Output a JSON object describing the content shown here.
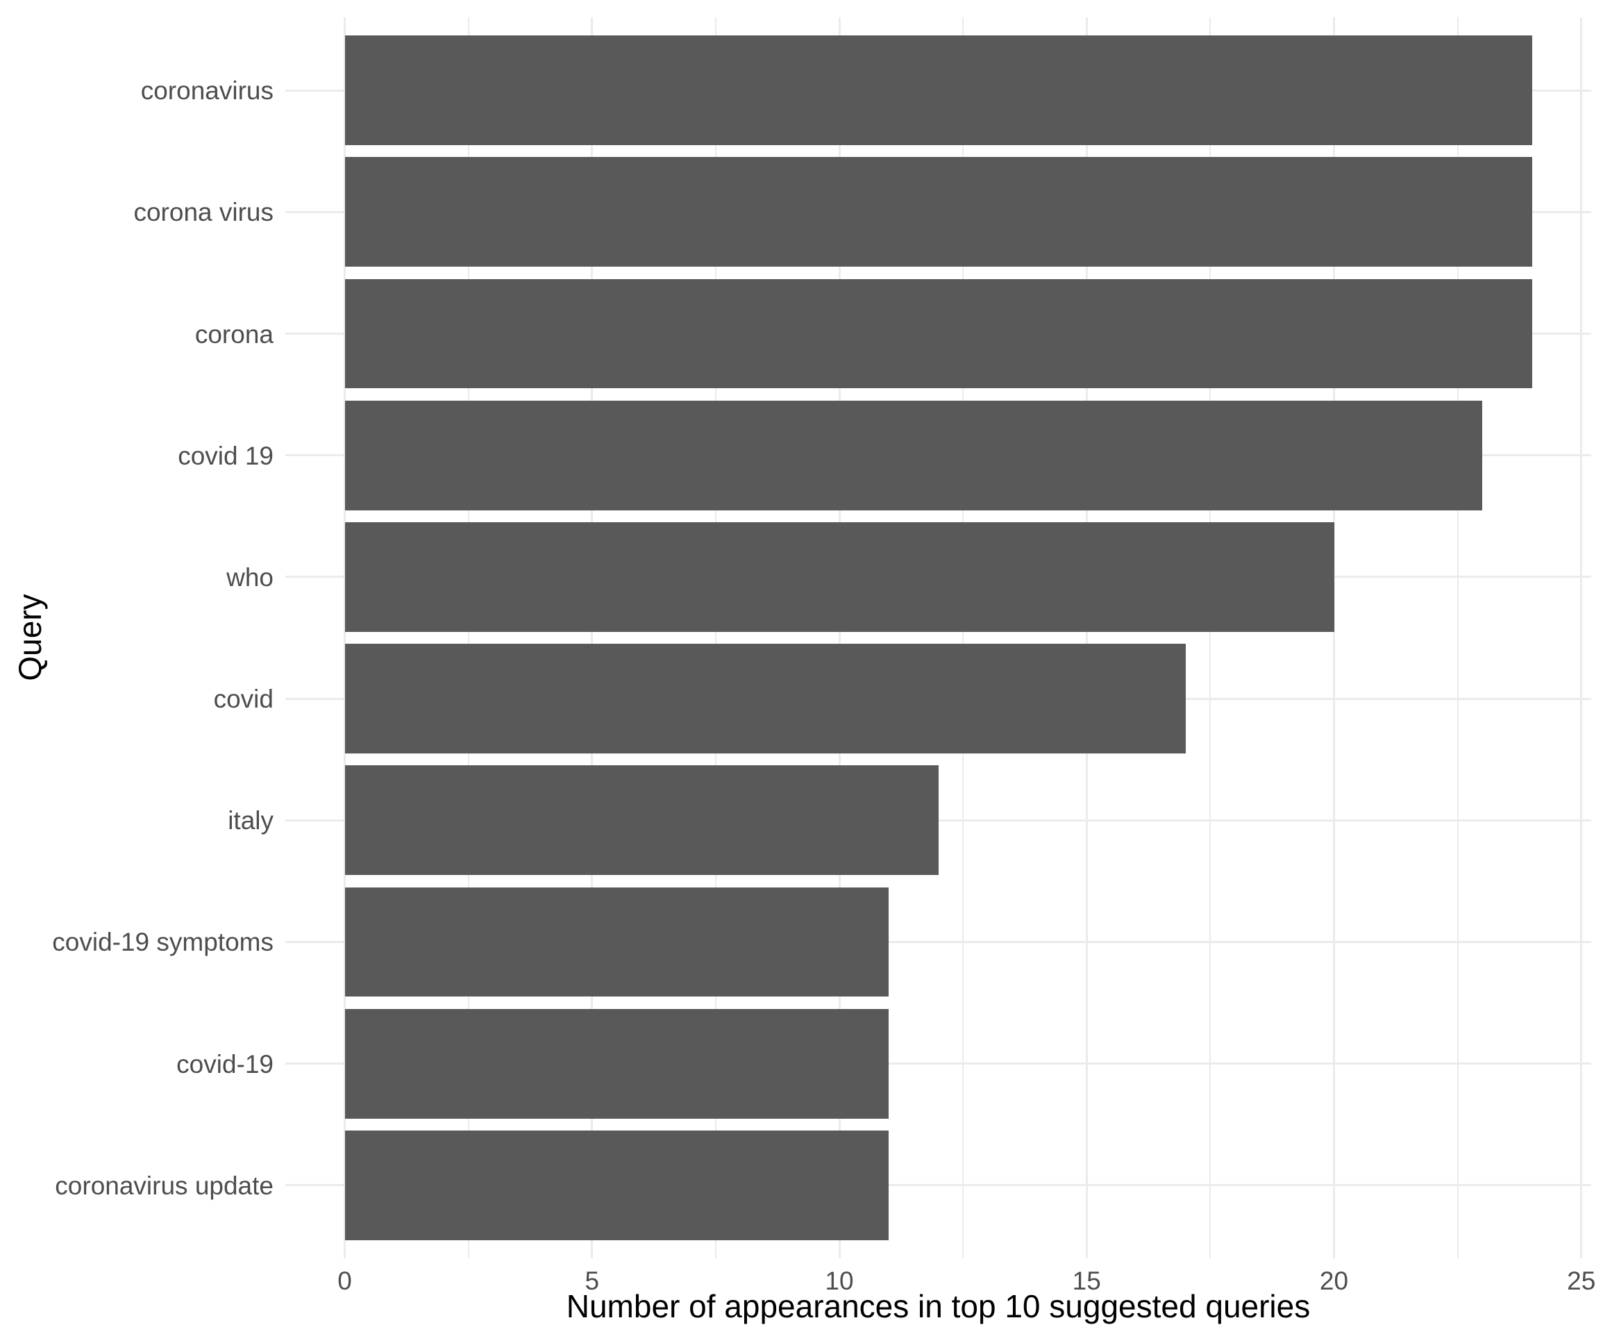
{
  "figure": {
    "background_color": "#FFFFFF"
  },
  "chart_data": {
    "type": "bar",
    "orientation": "horizontal",
    "categories": [
      "coronavirus",
      "corona virus",
      "corona",
      "covid 19",
      "who",
      "covid",
      "italy",
      "covid-19 symptoms",
      "covid-19",
      "coronavirus update"
    ],
    "values": [
      24,
      24,
      24,
      23,
      20,
      17,
      12,
      11,
      11,
      11
    ],
    "xlabel": "Number of appearances in top 10 suggested queries",
    "ylabel": "Query",
    "xlim": [
      0,
      25
    ],
    "x_major_ticks": [
      0,
      5,
      10,
      15,
      20,
      25
    ],
    "x_minor_ticks": [
      2.5,
      7.5,
      12.5,
      17.5,
      22.5
    ],
    "grid": "major and minor vertical, major horizontal per category",
    "legend_position": "none",
    "bar_color": "#595959",
    "grid_color": "#EBEBEB",
    "tick_label_color": "#4D4D4D",
    "axis_title_color": "#000000"
  }
}
